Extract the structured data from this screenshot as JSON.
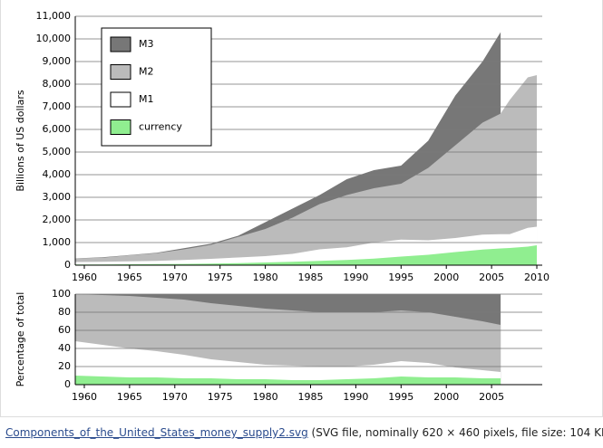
{
  "chart_data": [
    {
      "type": "area",
      "ylabel": "Billions of US dollars",
      "x": [
        1959,
        1962,
        1965,
        1968,
        1971,
        1974,
        1977,
        1980,
        1983,
        1986,
        1989,
        1992,
        1995,
        1998,
        2001,
        2004,
        2006,
        2007,
        2009,
        2010
      ],
      "series": [
        {
          "name": "M3",
          "color": "#777777",
          "values": [
            300,
            350,
            450,
            550,
            750,
            950,
            1300,
            1900,
            2500,
            3100,
            3800,
            4200,
            4400,
            5500,
            7500,
            9000,
            10300,
            null,
            null,
            null
          ]
        },
        {
          "name": "M2",
          "color": "#bbbbbb",
          "values": [
            300,
            330,
            440,
            530,
            700,
            900,
            1250,
            1600,
            2100,
            2700,
            3100,
            3400,
            3600,
            4300,
            5300,
            6300,
            6700,
            7300,
            8300,
            8400
          ]
        },
        {
          "name": "M1",
          "color": "#ffffff",
          "values": [
            140,
            150,
            170,
            190,
            230,
            280,
            340,
            400,
            500,
            700,
            790,
            1000,
            1130,
            1100,
            1200,
            1350,
            1370,
            1370,
            1650,
            1700
          ]
        },
        {
          "name": "currency",
          "color": "#90ee90",
          "values": [
            30,
            32,
            40,
            50,
            55,
            70,
            90,
            120,
            150,
            190,
            230,
            290,
            380,
            460,
            580,
            690,
            740,
            760,
            820,
            880
          ]
        }
      ],
      "xlim": [
        1959,
        2011
      ],
      "xticks": [
        1960,
        1965,
        1970,
        1975,
        1980,
        1985,
        1990,
        1995,
        2000,
        2005,
        2010
      ],
      "ylim": [
        0,
        11000
      ],
      "yticks": [
        0,
        {
          "value": 1000,
          "label": "1,000"
        },
        {
          "value": 2000,
          "label": "2,000"
        },
        {
          "value": 3000,
          "label": "3,000"
        },
        {
          "value": 4000,
          "label": "4,000"
        },
        {
          "value": 5000,
          "label": "5,000"
        },
        {
          "value": 6000,
          "label": "6,000"
        },
        {
          "value": 7000,
          "label": "7,000"
        },
        {
          "value": 8000,
          "label": "8,000"
        },
        {
          "value": 9000,
          "label": "9,000"
        },
        {
          "value": 10000,
          "label": "10,000"
        },
        {
          "value": 11000,
          "label": "11,000"
        }
      ],
      "grid": true,
      "legend": "upper left"
    },
    {
      "type": "area",
      "ylabel": "Percentage of total",
      "x": [
        1959,
        1962,
        1965,
        1968,
        1971,
        1974,
        1977,
        1980,
        1983,
        1986,
        1989,
        1992,
        1995,
        1998,
        2001,
        2004,
        2006
      ],
      "series": [
        {
          "color": "#777777",
          "values": [
            100,
            100,
            100,
            100,
            100,
            100,
            100,
            100,
            100,
            100,
            100,
            100,
            100,
            100,
            100,
            100,
            100
          ]
        },
        {
          "color": "#bbbbbb",
          "values": [
            100,
            99,
            98,
            96,
            94,
            90,
            87,
            84,
            82,
            80,
            80,
            80,
            82,
            80,
            75,
            70,
            66
          ]
        },
        {
          "color": "#ffffff",
          "values": [
            48,
            44,
            40,
            37,
            33,
            28,
            25,
            22,
            21,
            20,
            20,
            22,
            26,
            24,
            19,
            16,
            14
          ]
        },
        {
          "color": "#90ee90",
          "values": [
            10,
            9,
            8,
            8,
            7,
            7,
            6,
            6,
            5,
            5,
            6,
            7,
            9,
            8,
            8,
            7,
            7
          ]
        }
      ],
      "xlim": [
        1959,
        2011
      ],
      "xticks": [
        1960,
        1965,
        1970,
        1975,
        1980,
        1985,
        1990,
        1995,
        2000,
        2005
      ],
      "ylim": [
        0,
        100
      ],
      "yticks": [
        0,
        20,
        40,
        60,
        80,
        100
      ],
      "grid": true
    }
  ],
  "caption": {
    "link": "Components_of_the_United_States_money_supply2.svg",
    "text": " (SVG file, nominally 620 × 460 pixels, file size: 104 KB)"
  }
}
